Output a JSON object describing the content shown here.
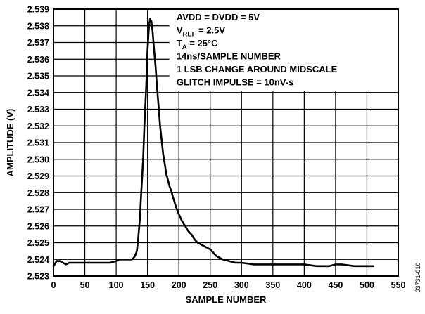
{
  "chart_data": {
    "type": "line",
    "title": "",
    "xlabel": "SAMPLE NUMBER",
    "ylabel": "AMPLITUDE (V)",
    "xlim": [
      0,
      550
    ],
    "ylim": [
      2.523,
      2.539
    ],
    "x_ticks": [
      0,
      50,
      100,
      150,
      200,
      250,
      300,
      350,
      400,
      450,
      500,
      550
    ],
    "x_tick_labels": [
      "0",
      "50",
      "100",
      "150",
      "200",
      "250",
      "300",
      "350",
      "400",
      "450",
      "500",
      "550"
    ],
    "y_ticks": [
      2.523,
      2.524,
      2.525,
      2.526,
      2.527,
      2.528,
      2.529,
      2.53,
      2.531,
      2.532,
      2.533,
      2.534,
      2.535,
      2.536,
      2.537,
      2.538,
      2.539
    ],
    "y_tick_labels": [
      "2.523",
      "2.524",
      "2.525",
      "2.526",
      "2.527",
      "2.528",
      "2.529",
      "2.530",
      "2.531",
      "2.532",
      "2.533",
      "2.534",
      "2.535",
      "2.536",
      "2.537",
      "2.538",
      "2.539"
    ],
    "grid": true,
    "legend": "none",
    "series": [
      {
        "x": [
          0,
          5,
          10,
          15,
          20,
          25,
          30,
          40,
          50,
          60,
          70,
          80,
          90,
          100,
          105,
          110,
          115,
          120,
          125,
          128,
          130,
          133,
          135,
          138,
          140,
          143,
          145,
          148,
          150,
          152,
          154,
          156,
          158,
          160,
          163,
          165,
          168,
          170,
          173,
          175,
          178,
          180,
          183,
          185,
          188,
          190,
          195,
          200,
          205,
          210,
          215,
          220,
          225,
          230,
          235,
          240,
          245,
          250,
          255,
          260,
          270,
          280,
          290,
          300,
          320,
          340,
          360,
          380,
          400,
          420,
          440,
          450,
          460,
          480,
          500,
          510
        ],
        "y": [
          2.5236,
          2.5239,
          2.5239,
          2.5238,
          2.5237,
          2.5238,
          2.5238,
          2.5238,
          2.5238,
          2.5238,
          2.5238,
          2.5238,
          2.5238,
          2.5239,
          2.524,
          2.524,
          2.524,
          2.524,
          2.524,
          2.5241,
          2.5242,
          2.5245,
          2.5252,
          2.5265,
          2.528,
          2.53,
          2.532,
          2.5345,
          2.5365,
          2.5378,
          2.5384,
          2.5383,
          2.5377,
          2.5368,
          2.5355,
          2.5344,
          2.533,
          2.532,
          2.531,
          2.5303,
          2.5296,
          2.5291,
          2.5287,
          2.5284,
          2.5281,
          2.5278,
          2.5272,
          2.5267,
          2.5263,
          2.526,
          2.5257,
          2.5255,
          2.5252,
          2.525,
          2.5249,
          2.5248,
          2.5247,
          2.5246,
          2.5244,
          2.5242,
          2.524,
          2.5239,
          2.5238,
          2.5238,
          2.5237,
          2.5237,
          2.5237,
          2.5237,
          2.5237,
          2.5236,
          2.5236,
          2.5237,
          2.5237,
          2.5236,
          2.5236,
          2.5236
        ]
      }
    ],
    "annotations": [
      {
        "text": "AVDD = DVDD = 5V"
      },
      {
        "text": "V",
        "sub": "REF",
        "rest": " = 2.5V"
      },
      {
        "text": "T",
        "sub": "A",
        "rest": " = 25°C"
      },
      {
        "text": "14ns/SAMPLE NUMBER"
      },
      {
        "text": "1 LSB CHANGE AROUND MIDSCALE"
      },
      {
        "text": "GLITCH IMPULSE = 10nV-s"
      }
    ]
  },
  "figure_id": "03731-010"
}
